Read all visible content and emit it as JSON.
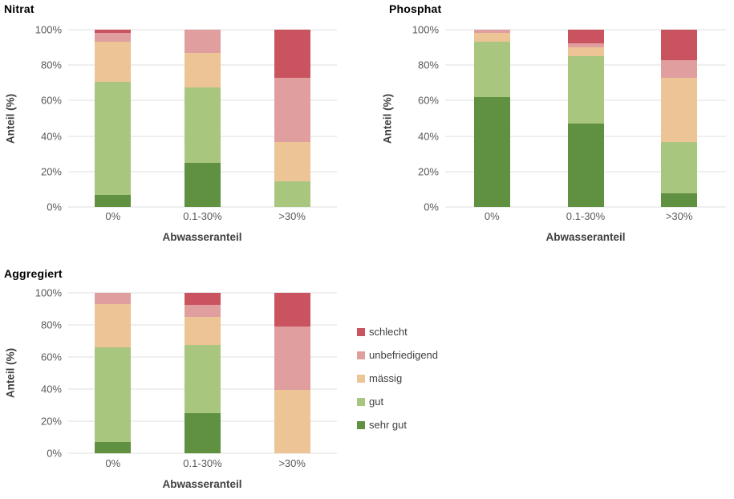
{
  "page": {
    "background": "#ffffff"
  },
  "legend": {
    "items": [
      {
        "label": "schlecht",
        "color": "#C9545F"
      },
      {
        "label": "unbefriedigend",
        "color": "#E09E9E"
      },
      {
        "label": "mässig",
        "color": "#ECC495"
      },
      {
        "label": "gut",
        "color": "#A9C67F"
      },
      {
        "label": "sehr gut",
        "color": "#609140"
      }
    ]
  },
  "chart_data": [
    {
      "type": "bar",
      "stacked": true,
      "title": "Nitrat",
      "xlabel": "Abwasseranteil",
      "ylabel": "Anteil (%)",
      "ylim": [
        0,
        100
      ],
      "grid": true,
      "y_ticks": [
        "0%",
        "20%",
        "40%",
        "60%",
        "80%",
        "100%"
      ],
      "categories": [
        "0%",
        "0.1-30%",
        ">30%"
      ],
      "series": [
        {
          "name": "sehr gut",
          "color": "#609140",
          "values": [
            7,
            25,
            0
          ]
        },
        {
          "name": "gut",
          "color": "#A9C67F",
          "values": [
            63.5,
            42.5,
            14.5
          ]
        },
        {
          "name": "mässig",
          "color": "#ECC495",
          "values": [
            22.5,
            19.5,
            22
          ]
        },
        {
          "name": "unbefriedigend",
          "color": "#E09E9E",
          "values": [
            5,
            13,
            36.5
          ]
        },
        {
          "name": "schlecht",
          "color": "#C9545F",
          "values": [
            2,
            0,
            27
          ]
        }
      ]
    },
    {
      "type": "bar",
      "stacked": true,
      "title": "Phosphat",
      "xlabel": "Abwasseranteil",
      "ylabel": "Anteil (%)",
      "ylim": [
        0,
        100
      ],
      "grid": true,
      "y_ticks": [
        "0%",
        "20%",
        "40%",
        "60%",
        "80%",
        "100%"
      ],
      "categories": [
        "0%",
        "0.1-30%",
        ">30%"
      ],
      "series": [
        {
          "name": "sehr gut",
          "color": "#609140",
          "values": [
            62,
            47,
            7.5
          ]
        },
        {
          "name": "gut",
          "color": "#A9C67F",
          "values": [
            31,
            38,
            29
          ]
        },
        {
          "name": "mässig",
          "color": "#ECC495",
          "values": [
            5,
            5,
            36.5
          ]
        },
        {
          "name": "unbefriedigend",
          "color": "#E09E9E",
          "values": [
            2,
            2.5,
            10
          ]
        },
        {
          "name": "schlecht",
          "color": "#C9545F",
          "values": [
            0,
            7.5,
            17
          ]
        }
      ]
    },
    {
      "type": "bar",
      "stacked": true,
      "title": "Aggregiert",
      "xlabel": "Abwasseranteil",
      "ylabel": "Anteil (%)",
      "ylim": [
        0,
        100
      ],
      "grid": true,
      "y_ticks": [
        "0%",
        "20%",
        "40%",
        "60%",
        "80%",
        "100%"
      ],
      "categories": [
        "0%",
        "0.1-30%",
        ">30%"
      ],
      "series": [
        {
          "name": "sehr gut",
          "color": "#609140",
          "values": [
            7,
            25,
            0
          ]
        },
        {
          "name": "gut",
          "color": "#A9C67F",
          "values": [
            59,
            42.5,
            0
          ]
        },
        {
          "name": "mässig",
          "color": "#ECC495",
          "values": [
            27,
            17.5,
            39.5
          ]
        },
        {
          "name": "unbefriedigend",
          "color": "#E09E9E",
          "values": [
            7,
            7.5,
            39.5
          ]
        },
        {
          "name": "schlecht",
          "color": "#C9545F",
          "values": [
            0,
            7.5,
            21
          ]
        }
      ]
    }
  ]
}
